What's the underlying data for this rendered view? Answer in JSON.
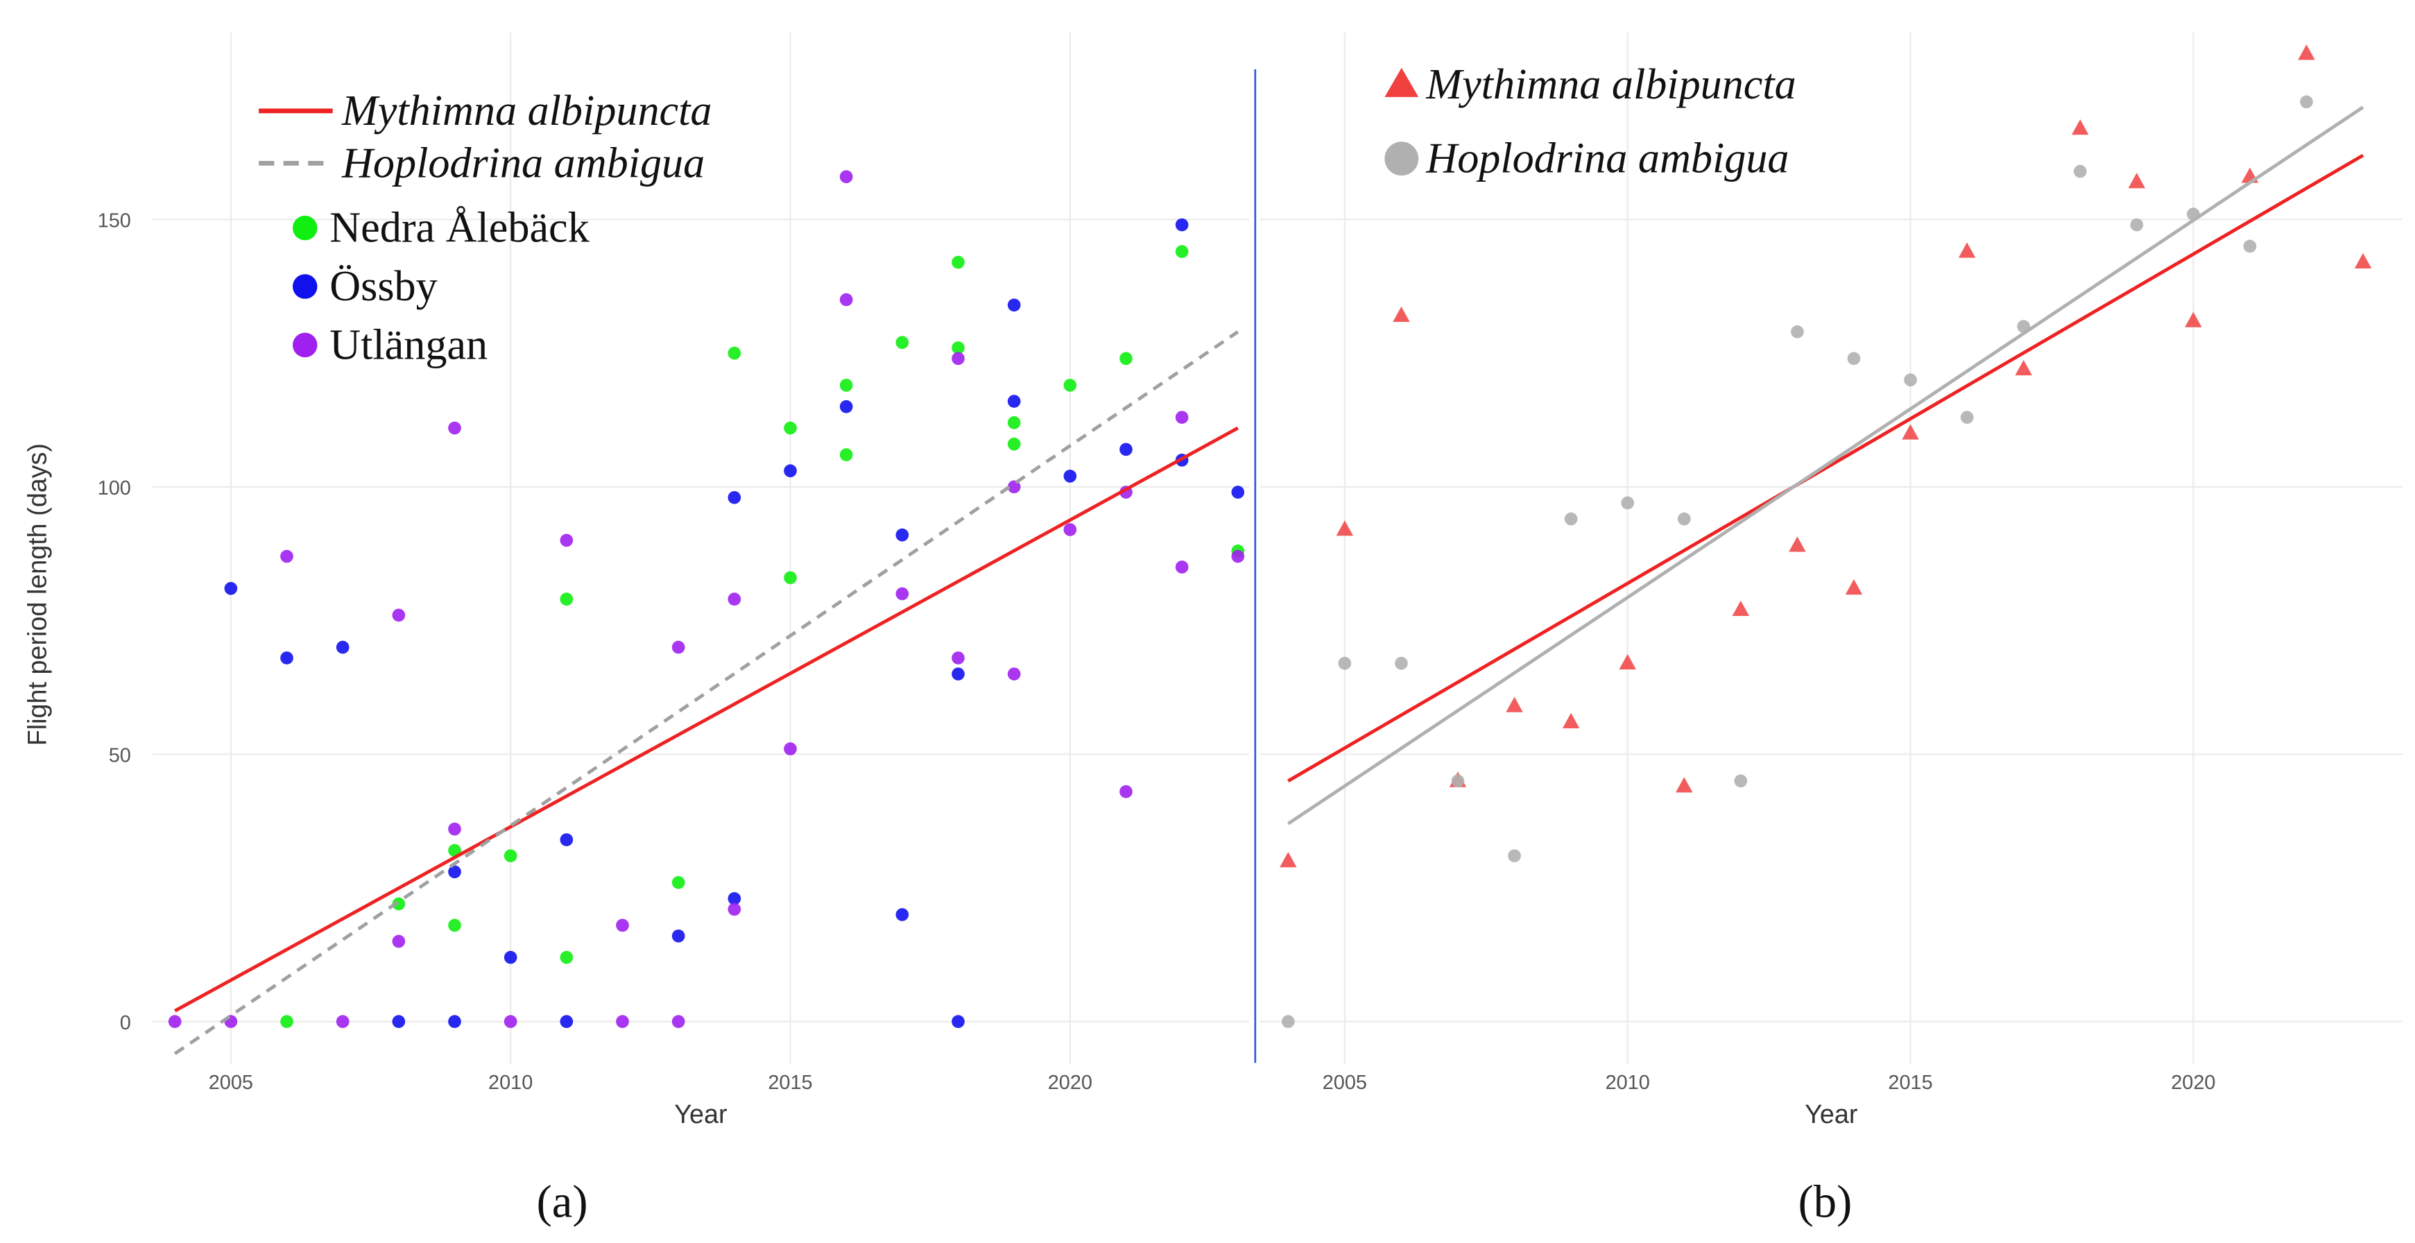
{
  "chart_data": [
    {
      "type": "scatter",
      "x_label": "Year",
      "y_label": "Flight period length (days)",
      "caption": "(a)",
      "xlim": [
        2003.6,
        2023.2
      ],
      "ylim": [
        -8,
        185
      ],
      "xticks": [
        2005,
        2010,
        2015,
        2020
      ],
      "yticks": [
        0,
        50,
        100,
        150
      ],
      "grid": true,
      "fits": [
        {
          "name": "Mythimna albipuncta",
          "color": "#ee2222",
          "dash": false,
          "x": [
            2004,
            2023
          ],
          "values": [
            2,
            111
          ]
        },
        {
          "name": "Hoplodrina ambigua",
          "color": "#a0a0a0",
          "dash": true,
          "x": [
            2004,
            2023
          ],
          "values": [
            -6,
            129
          ]
        }
      ],
      "series": [
        {
          "name": "Nedra Ålebäck",
          "color": "#11ee11",
          "marker": "circle",
          "x": [
            2006,
            2008,
            2009,
            2009,
            2010,
            2011,
            2011,
            2013,
            2014,
            2015,
            2015,
            2016,
            2016,
            2017,
            2018,
            2018,
            2019,
            2019,
            2020,
            2021,
            2022,
            2023
          ],
          "values": [
            0,
            22,
            32,
            18,
            31,
            79,
            12,
            26,
            125,
            111,
            83,
            119,
            106,
            127,
            142,
            126,
            112,
            108,
            119,
            124,
            144,
            88
          ]
        },
        {
          "name": "Össby",
          "color": "#1111ee",
          "marker": "circle",
          "x": [
            2005,
            2006,
            2007,
            2008,
            2009,
            2009,
            2010,
            2011,
            2011,
            2013,
            2014,
            2014,
            2015,
            2016,
            2017,
            2017,
            2018,
            2018,
            2019,
            2019,
            2020,
            2021,
            2022,
            2022,
            2023
          ],
          "values": [
            81,
            68,
            70,
            0,
            0,
            28,
            12,
            34,
            0,
            16,
            98,
            23,
            103,
            115,
            91,
            20,
            65,
            0,
            134,
            116,
            102,
            107,
            149,
            105,
            99
          ]
        },
        {
          "name": "Utlängan",
          "color": "#a020f0",
          "marker": "circle",
          "x": [
            2004,
            2005,
            2006,
            2007,
            2008,
            2008,
            2009,
            2009,
            2010,
            2011,
            2012,
            2012,
            2013,
            2013,
            2014,
            2014,
            2015,
            2016,
            2016,
            2017,
            2018,
            2018,
            2019,
            2019,
            2020,
            2021,
            2021,
            2022,
            2022,
            2023
          ],
          "values": [
            0,
            0,
            87,
            0,
            76,
            15,
            111,
            36,
            0,
            90,
            18,
            0,
            70,
            0,
            79,
            21,
            51,
            158,
            135,
            80,
            124,
            68,
            100,
            65,
            92,
            99,
            43,
            113,
            85,
            87
          ]
        }
      ]
    },
    {
      "type": "scatter",
      "x_label": "Year",
      "caption": "(b)",
      "xlim": [
        2003.5,
        2023.7
      ],
      "ylim": [
        -8,
        185
      ],
      "xticks": [
        2005,
        2010,
        2015,
        2020
      ],
      "grid": true,
      "fits": [
        {
          "color": "#ee2222",
          "dash": false,
          "x": [
            2004,
            2023
          ],
          "values": [
            45,
            162
          ]
        },
        {
          "color": "#b0b0b0",
          "dash": false,
          "x": [
            2004,
            2023
          ],
          "values": [
            37,
            171
          ]
        }
      ],
      "series": [
        {
          "name": "Mythimna albipuncta",
          "color": "#f04040",
          "marker": "triangle",
          "x": [
            2004,
            2005,
            2006,
            2007,
            2008,
            2009,
            2010,
            2011,
            2012,
            2013,
            2014,
            2015,
            2016,
            2017,
            2018,
            2019,
            2020,
            2021,
            2022,
            2023
          ],
          "values": [
            30,
            92,
            132,
            45,
            59,
            56,
            67,
            44,
            77,
            89,
            81,
            110,
            144,
            122,
            167,
            157,
            131,
            158,
            181,
            142
          ]
        },
        {
          "name": "Hoplodrina ambigua",
          "color": "#b0b0b0",
          "marker": "circle",
          "x": [
            2004,
            2005,
            2006,
            2007,
            2008,
            2009,
            2010,
            2011,
            2012,
            2013,
            2014,
            2015,
            2016,
            2017,
            2018,
            2019,
            2020,
            2021,
            2022
          ],
          "values": [
            0,
            67,
            67,
            45,
            31,
            94,
            97,
            94,
            45,
            129,
            124,
            120,
            113,
            130,
            159,
            149,
            151,
            145,
            172
          ]
        }
      ]
    }
  ]
}
